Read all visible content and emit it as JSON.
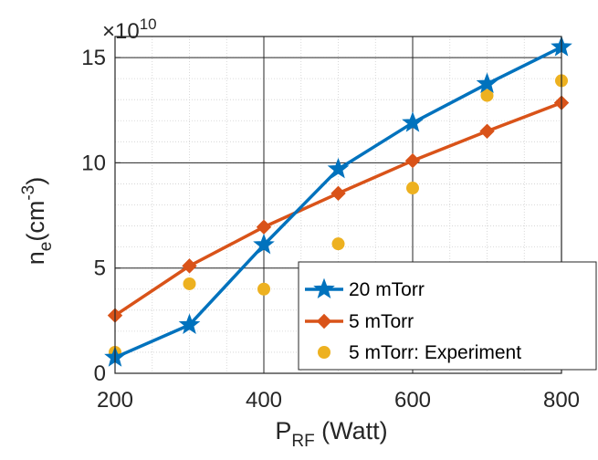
{
  "chart_data": {
    "type": "line",
    "x": [
      200,
      300,
      400,
      500,
      600,
      700,
      800
    ],
    "xlim": [
      200,
      800
    ],
    "ylim": [
      0,
      16
    ],
    "y_multiplier_label": {
      "base": "×10",
      "exp": "10"
    },
    "xticks": [
      200,
      400,
      600,
      800
    ],
    "xtick_labels": [
      "200",
      "400",
      "600",
      "800"
    ],
    "yticks": [
      0,
      5,
      10,
      15
    ],
    "ytick_labels": [
      "0",
      "5",
      "10",
      "15"
    ],
    "xlabel": {
      "main": "P",
      "sub": "RF",
      "rest": " (Watt)"
    },
    "ylabel": {
      "main": "n",
      "sub": "e",
      "mid": "(cm",
      "sup": "-3",
      "end": ")"
    },
    "grid": true,
    "minor_grid": true,
    "legend_position": "bottom-right",
    "series": [
      {
        "name": "20 mTorr",
        "color": "#0072BD",
        "marker": "star",
        "line": true,
        "values": [
          0.75,
          2.3,
          6.1,
          9.7,
          11.9,
          13.75,
          15.5
        ]
      },
      {
        "name": "5 mTorr",
        "color": "#D95319",
        "marker": "diamond",
        "line": true,
        "values": [
          2.75,
          5.1,
          6.95,
          8.55,
          10.1,
          11.5,
          12.85
        ]
      },
      {
        "name": "5 mTorr: Experiment",
        "color": "#EDB120",
        "marker": "circle",
        "line": false,
        "values": [
          1.0,
          4.25,
          4.0,
          6.15,
          8.8,
          13.2,
          13.9
        ]
      }
    ]
  }
}
